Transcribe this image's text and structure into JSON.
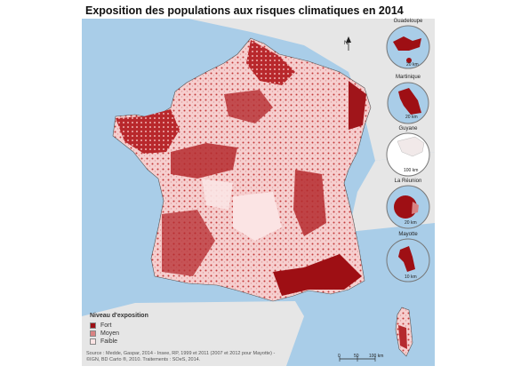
{
  "title": "Exposition des populations aux risques climatiques en 2014",
  "legend": {
    "title": "Niveau d'exposition",
    "items": [
      {
        "label": "Fort",
        "color": "#9e0f14"
      },
      {
        "label": "Moyen",
        "color": "#d98282"
      },
      {
        "label": "Faible",
        "color": "#fbe4e4"
      }
    ]
  },
  "source_lines": [
    "Source : Medde, Gaspar, 2014 - Insee, RP, 1999 et 2011 (2007 et 2012 pour Mayotte) -",
    "©IGN, BD Carto ®, 2010. Traitements : SOeS, 2014."
  ],
  "insets": [
    {
      "name": "Guadeloupe",
      "scale": "20 km"
    },
    {
      "name": "Martinique",
      "scale": "20 km"
    },
    {
      "name": "Guyane",
      "scale": "100 km"
    },
    {
      "name": "La Réunion",
      "scale": "20 km"
    },
    {
      "name": "Mayotte",
      "scale": "10 km"
    }
  ],
  "north_label": "N",
  "scale_bar": {
    "ticks": [
      "0",
      "50",
      "100 km"
    ]
  },
  "colors": {
    "sea": "#a9cde8",
    "land_outside": "#e6e6e6",
    "fort": "#9e0f14",
    "moyen": "#d98282",
    "faible": "#fbe4e4"
  }
}
